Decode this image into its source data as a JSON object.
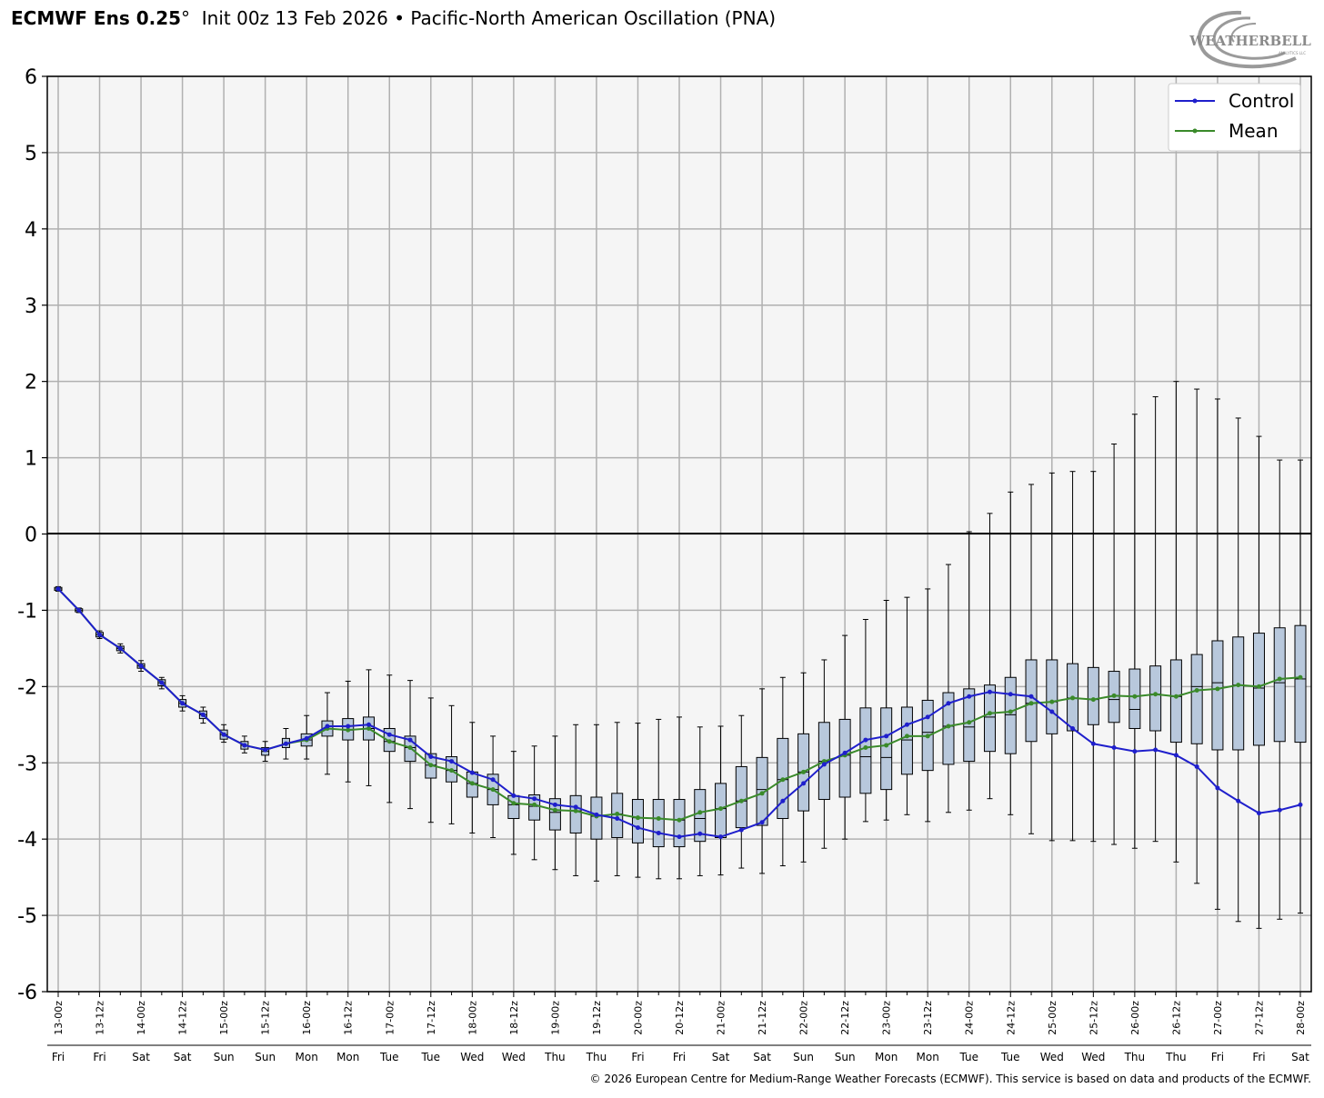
{
  "header": {
    "model": "ECMWF Ens 0.25",
    "degree": "°",
    "init": "Init 00z 13 Feb 2026",
    "separator": "•",
    "index_name": "Pacific-North American Oscillation (PNA)"
  },
  "logo_text": "WEATHERBELL",
  "logo_subtext": "ANALYTICS LLC",
  "credit": "© 2026 European Centre for Medium-Range Weather Forecasts (ECMWF). This service is based on data and products of the ECMWF.",
  "chart_data": {
    "type": "line",
    "title": "",
    "xlabel": "",
    "ylabel": "",
    "ylim": [
      -6,
      6
    ],
    "yticks": [
      6,
      5,
      4,
      3,
      2,
      1,
      0,
      -1,
      -2,
      -3,
      -4,
      -5,
      -6
    ],
    "grid": true,
    "legend_position": "top-right",
    "time_step_hours": 6,
    "date_labels": [
      "13-00z",
      "13-12z",
      "14-00z",
      "14-12z",
      "15-00z",
      "15-12z",
      "16-00z",
      "16-12z",
      "17-00z",
      "17-12z",
      "18-00z",
      "18-12z",
      "19-00z",
      "19-12z",
      "20-00z",
      "20-12z",
      "21-00z",
      "21-12z",
      "22-00z",
      "22-12z",
      "23-00z",
      "23-12z",
      "24-00z",
      "24-12z",
      "25-00z",
      "25-12z",
      "26-00z",
      "26-12z",
      "27-00z",
      "27-12z",
      "28-00z"
    ],
    "day_labels": [
      "Fri",
      "Fri",
      "Sat",
      "Sat",
      "Sun",
      "Sun",
      "Mon",
      "Mon",
      "Tue",
      "Tue",
      "Wed",
      "Wed",
      "Thu",
      "Thu",
      "Fri",
      "Fri",
      "Sat",
      "Sat",
      "Sun",
      "Sun",
      "Mon",
      "Mon",
      "Tue",
      "Tue",
      "Wed",
      "Wed",
      "Thu",
      "Thu",
      "Fri",
      "Fri",
      "Sat"
    ],
    "series": [
      {
        "name": "Control",
        "color": "#1f1fcc",
        "values": [
          -0.72,
          -1.0,
          -1.32,
          -1.5,
          -1.73,
          -1.95,
          -2.22,
          -2.37,
          -2.63,
          -2.77,
          -2.83,
          -2.75,
          -2.68,
          -2.52,
          -2.52,
          -2.5,
          -2.63,
          -2.7,
          -2.92,
          -2.98,
          -3.13,
          -3.22,
          -3.43,
          -3.47,
          -3.55,
          -3.58,
          -3.68,
          -3.73,
          -3.85,
          -3.92,
          -3.97,
          -3.93,
          -3.97,
          -3.88,
          -3.78,
          -3.5,
          -3.27,
          -3.02,
          -2.87,
          -2.7,
          -2.65,
          -2.5,
          -2.4,
          -2.22,
          -2.13,
          -2.07,
          -2.1,
          -2.13,
          -2.33,
          -2.55,
          -2.75,
          -2.8,
          -2.85,
          -2.83,
          -2.9,
          -3.05,
          -3.33,
          -3.5,
          -3.66,
          -3.62,
          -3.55
        ]
      },
      {
        "name": "Mean",
        "color": "#3a8a2a",
        "values": [
          -0.72,
          -1.0,
          -1.32,
          -1.5,
          -1.73,
          -1.95,
          -2.22,
          -2.37,
          -2.63,
          -2.77,
          -2.83,
          -2.75,
          -2.7,
          -2.55,
          -2.57,
          -2.55,
          -2.72,
          -2.8,
          -3.03,
          -3.1,
          -3.27,
          -3.35,
          -3.53,
          -3.55,
          -3.62,
          -3.63,
          -3.7,
          -3.67,
          -3.72,
          -3.73,
          -3.75,
          -3.65,
          -3.6,
          -3.5,
          -3.4,
          -3.22,
          -3.12,
          -2.98,
          -2.9,
          -2.8,
          -2.77,
          -2.65,
          -2.65,
          -2.52,
          -2.47,
          -2.35,
          -2.33,
          -2.22,
          -2.2,
          -2.15,
          -2.17,
          -2.12,
          -2.13,
          -2.1,
          -2.13,
          -2.05,
          -2.03,
          -1.98,
          -2.0,
          -1.9,
          -1.88
        ]
      }
    ],
    "boxes": {
      "median": [
        -0.72,
        -1.0,
        -1.32,
        -1.5,
        -1.73,
        -1.95,
        -2.22,
        -2.37,
        -2.63,
        -2.77,
        -2.85,
        -2.75,
        -2.7,
        -2.55,
        -2.57,
        -2.55,
        -2.72,
        -2.8,
        -3.03,
        -3.1,
        -3.27,
        -3.35,
        -3.55,
        -3.57,
        -3.65,
        -3.63,
        -3.7,
        -3.67,
        -3.72,
        -3.73,
        -3.75,
        -3.73,
        -3.6,
        -3.5,
        -3.35,
        -3.22,
        -3.12,
        -2.98,
        -2.9,
        -2.92,
        -2.93,
        -2.7,
        -2.6,
        -2.52,
        -2.53,
        -2.4,
        -2.37,
        -2.22,
        -2.2,
        -2.15,
        -2.17,
        -2.17,
        -2.3,
        -2.1,
        -2.13,
        -2.0,
        -1.95,
        -1.98,
        -2.02,
        -1.95,
        -1.9
      ],
      "q1": [
        -0.74,
        -1.02,
        -1.35,
        -1.53,
        -1.76,
        -1.99,
        -2.27,
        -2.42,
        -2.69,
        -2.82,
        -2.9,
        -2.8,
        -2.78,
        -2.65,
        -2.7,
        -2.7,
        -2.85,
        -2.98,
        -3.2,
        -3.25,
        -3.45,
        -3.55,
        -3.73,
        -3.75,
        -3.88,
        -3.92,
        -4.0,
        -3.98,
        -4.05,
        -4.1,
        -4.1,
        -4.03,
        -3.98,
        -3.85,
        -3.82,
        -3.73,
        -3.63,
        -3.48,
        -3.45,
        -3.4,
        -3.35,
        -3.15,
        -3.1,
        -3.02,
        -2.98,
        -2.85,
        -2.88,
        -2.72,
        -2.62,
        -2.58,
        -2.5,
        -2.47,
        -2.55,
        -2.58,
        -2.73,
        -2.75,
        -2.83,
        -2.83,
        -2.77,
        -2.72,
        -2.73
      ],
      "q3": [
        -0.7,
        -0.98,
        -1.29,
        -1.47,
        -1.7,
        -1.91,
        -2.17,
        -2.32,
        -2.57,
        -2.72,
        -2.8,
        -2.68,
        -2.62,
        -2.45,
        -2.42,
        -2.4,
        -2.55,
        -2.65,
        -2.88,
        -2.92,
        -3.12,
        -3.15,
        -3.43,
        -3.42,
        -3.47,
        -3.43,
        -3.45,
        -3.4,
        -3.48,
        -3.48,
        -3.48,
        -3.35,
        -3.27,
        -3.05,
        -2.93,
        -2.68,
        -2.62,
        -2.47,
        -2.43,
        -2.28,
        -2.28,
        -2.27,
        -2.18,
        -2.08,
        -2.03,
        -1.98,
        -1.88,
        -1.65,
        -1.65,
        -1.7,
        -1.75,
        -1.8,
        -1.77,
        -1.73,
        -1.65,
        -1.58,
        -1.4,
        -1.35,
        -1.3,
        -1.23,
        -1.2
      ],
      "min": [
        -0.75,
        -1.03,
        -1.37,
        -1.56,
        -1.8,
        -2.03,
        -2.32,
        -2.48,
        -2.73,
        -2.87,
        -2.98,
        -2.95,
        -2.95,
        -3.15,
        -3.25,
        -3.3,
        -3.52,
        -3.6,
        -3.78,
        -3.8,
        -3.92,
        -3.98,
        -4.2,
        -4.27,
        -4.4,
        -4.48,
        -4.55,
        -4.48,
        -4.5,
        -4.52,
        -4.52,
        -4.48,
        -4.47,
        -4.38,
        -4.45,
        -4.35,
        -4.3,
        -4.12,
        -4.0,
        -3.77,
        -3.75,
        -3.68,
        -3.77,
        -3.65,
        -3.62,
        -3.47,
        -3.68,
        -3.93,
        -4.02,
        -4.02,
        -4.03,
        -4.07,
        -4.12,
        -4.03,
        -4.3,
        -4.58,
        -4.92,
        -5.08,
        -5.17,
        -5.05,
        -4.97
      ],
      "max": [
        -0.69,
        -0.97,
        -1.27,
        -1.44,
        -1.66,
        -1.88,
        -2.12,
        -2.27,
        -2.5,
        -2.65,
        -2.72,
        -2.55,
        -2.38,
        -2.08,
        -1.93,
        -1.78,
        -1.85,
        -1.92,
        -2.15,
        -2.25,
        -2.47,
        -2.65,
        -2.85,
        -2.78,
        -2.65,
        -2.5,
        -2.5,
        -2.47,
        -2.48,
        -2.43,
        -2.4,
        -2.53,
        -2.52,
        -2.38,
        -2.03,
        -1.88,
        -1.82,
        -1.65,
        -1.33,
        -1.12,
        -0.87,
        -0.83,
        -0.72,
        -0.4,
        0.03,
        0.27,
        0.55,
        0.65,
        0.8,
        0.82,
        0.82,
        1.18,
        1.57,
        1.8,
        2.0,
        1.9,
        1.77,
        1.52,
        1.28,
        0.97,
        0.97
      ]
    }
  }
}
